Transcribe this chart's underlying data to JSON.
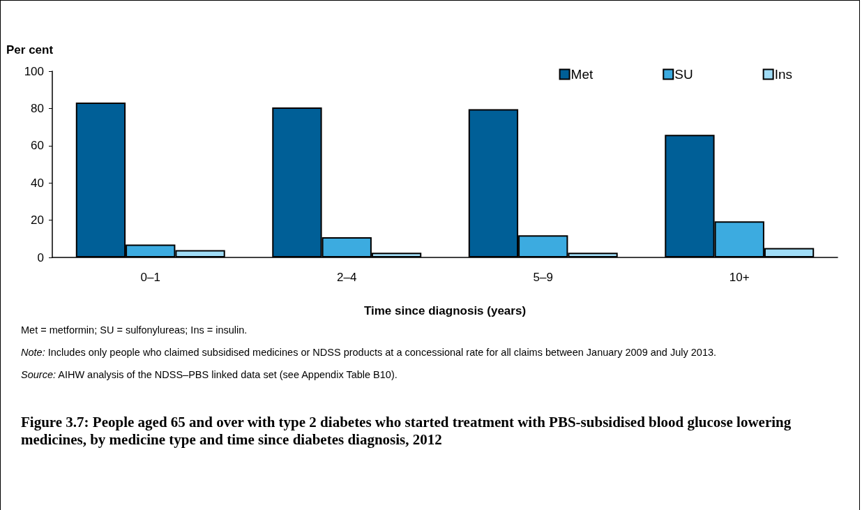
{
  "chart_data": {
    "type": "bar",
    "title": "Figure 3.7: People aged 65 and over with type 2 diabetes who started treatment with PBS-subsidised blood glucose lowering medicines, by medicine type and time since diabetes diagnosis, 2012",
    "xlabel": "Time since diagnosis (years)",
    "ylabel": "Per cent",
    "categories": [
      "0–1",
      "2–4",
      "5–9",
      "10+"
    ],
    "series": [
      {
        "name": "Met",
        "color": "#005f97",
        "values": [
          83.1,
          80.5,
          79.6,
          65.8
        ]
      },
      {
        "name": "SU",
        "color": "#3cabe0",
        "values": [
          6.9,
          10.9,
          11.9,
          19.4
        ]
      },
      {
        "name": "Ins",
        "color": "#a0dcf6",
        "values": [
          3.9,
          2.5,
          2.5,
          5.1
        ]
      }
    ],
    "ylim": [
      0,
      100
    ],
    "yticks": [
      0,
      20,
      40,
      60,
      80,
      100
    ],
    "grid": false,
    "legend": "top right",
    "annotations": [
      "Met = metformin; SU = sulfonylureas; Ins = insulin.",
      "Note: Includes only people who claimed subsidised medicines or NDSS products at a concessional rate for all claims between January 2009 and July 2013.",
      "Source: AIHW analysis of the NDSS–PBS linked data set (see Appendix Table B10)."
    ]
  }
}
